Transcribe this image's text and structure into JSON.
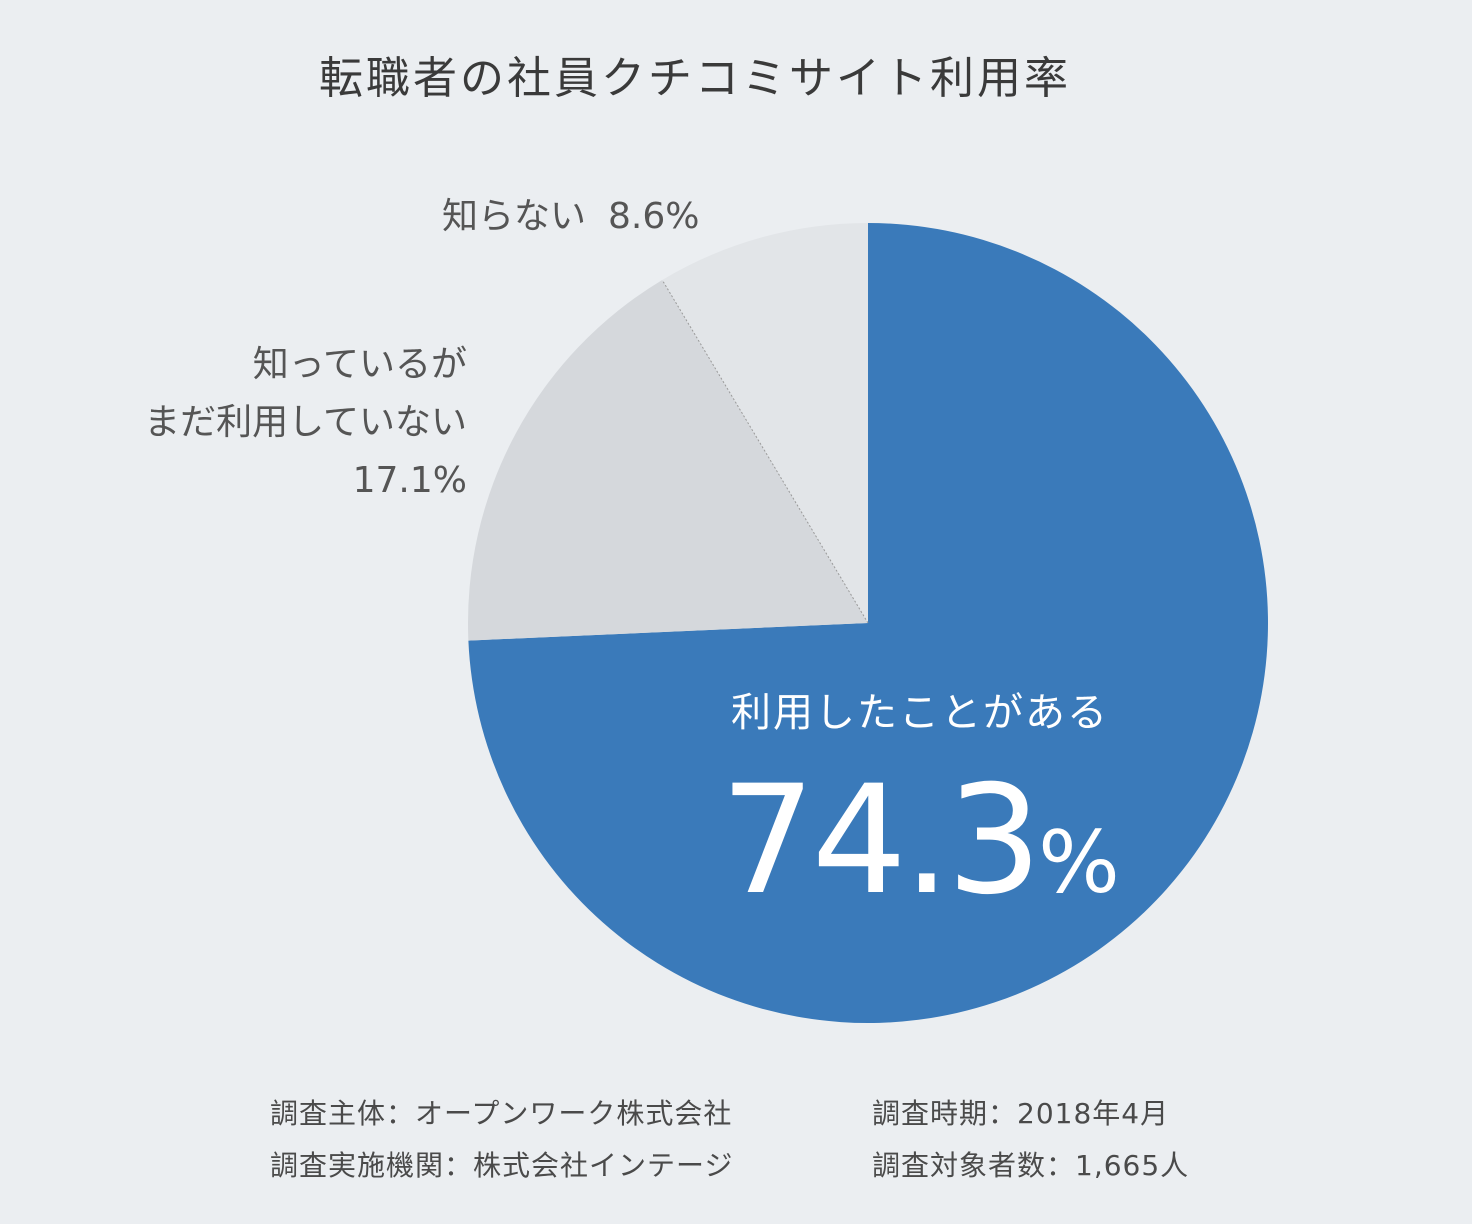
{
  "chart_data": {
    "type": "pie",
    "title": "転職者の社員クチコミサイト利用率",
    "slices": [
      {
        "label": "利用したことがある",
        "value": 74.3,
        "display": "74.3",
        "unit": "%",
        "color": "#3a7aba"
      },
      {
        "label_lines": [
          "知っているが",
          "まだ利用していない"
        ],
        "value": 17.1,
        "display": "17.1%",
        "color": "#d5d8dc"
      },
      {
        "label": "知らない",
        "value": 8.6,
        "display": "8.6%",
        "color": "#e2e5e8"
      }
    ],
    "start_angle": "12 o'clock",
    "direction": "clockwise",
    "divider_color": "#9a9a9a"
  },
  "footer": {
    "sponsor": "調査主体：オープンワーク株式会社",
    "period": "調査時期：2018年4月",
    "agency": "調査実施機関：株式会社インテージ",
    "respondents": "調査対象者数：1,665人"
  }
}
